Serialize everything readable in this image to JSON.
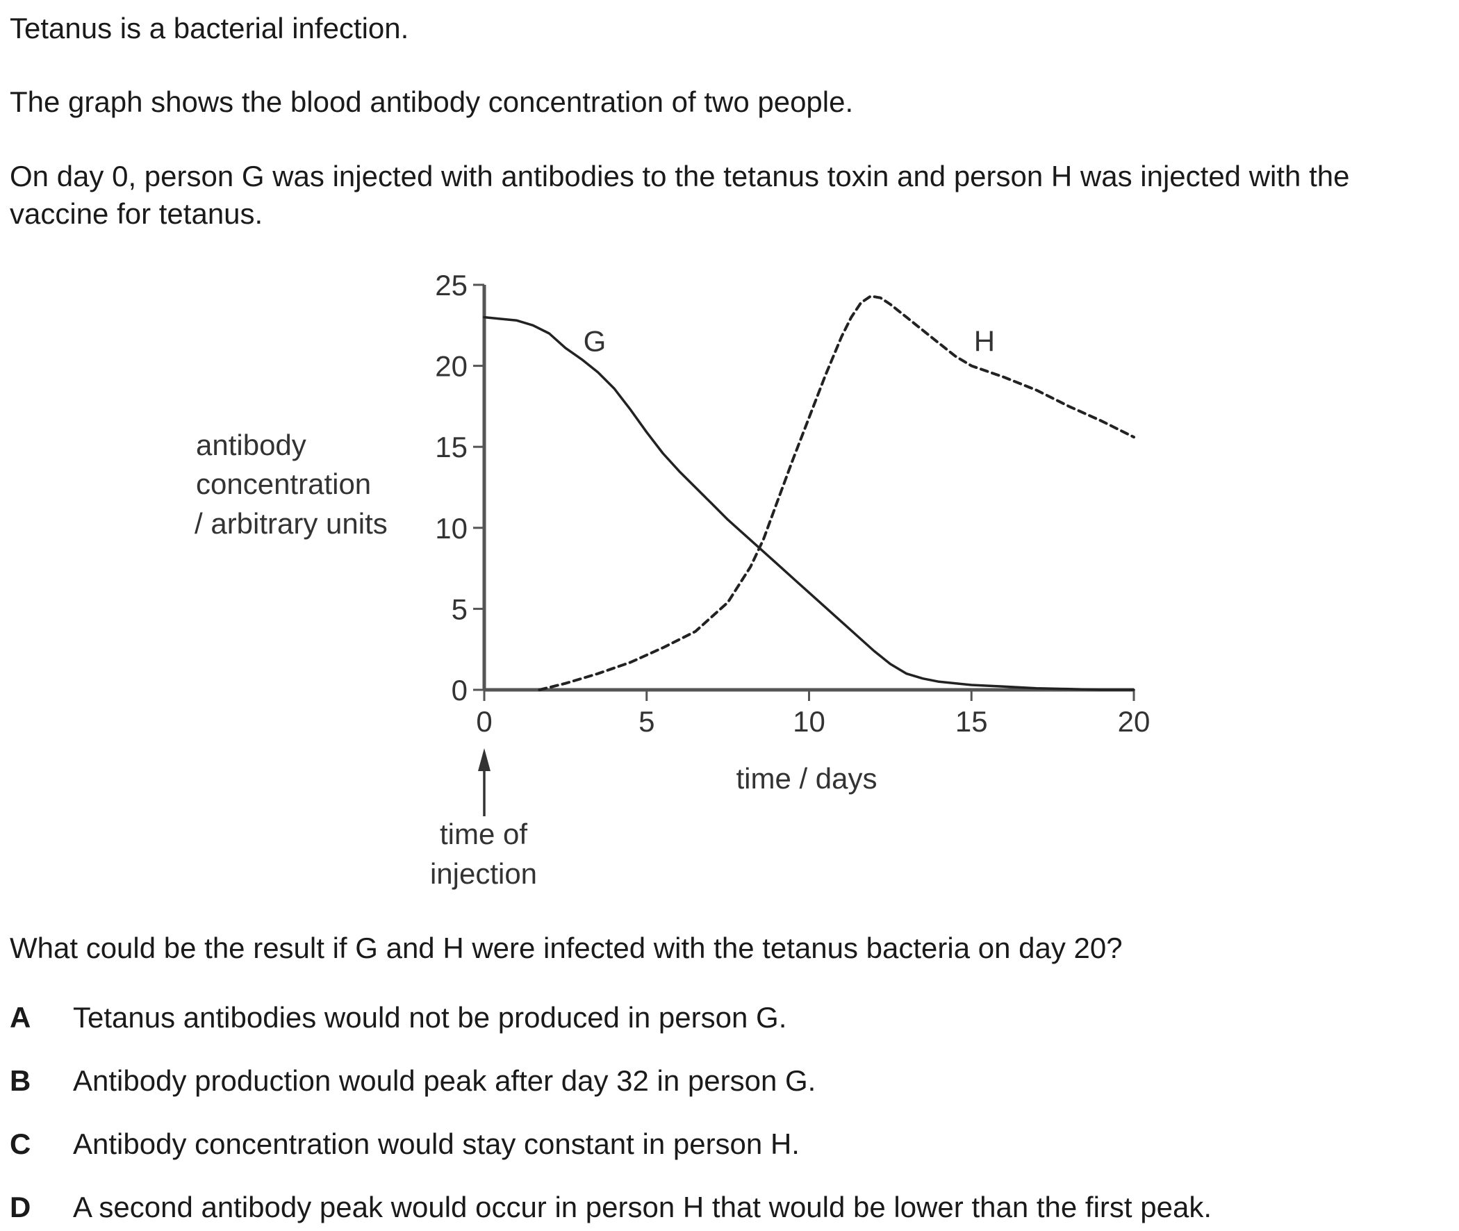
{
  "intro": [
    "Tetanus is a bacterial infection.",
    "The graph shows the blood antibody concentration of two people.",
    "On day 0, person G was injected with antibodies to the tetanus toxin and person H was injected with the vaccine for tetanus."
  ],
  "chart_data": {
    "type": "line",
    "title": "",
    "xlabel": "time / days",
    "ylabel": [
      "antibody",
      "concentration",
      "/ arbitrary units"
    ],
    "xlim": [
      0,
      20
    ],
    "ylim": [
      0,
      25
    ],
    "x_ticks": [
      0,
      5,
      10,
      15,
      20
    ],
    "y_ticks": [
      0,
      5,
      10,
      15,
      20,
      25
    ],
    "grid": false,
    "series": [
      {
        "name": "G",
        "style": "solid",
        "x": [
          0,
          0.5,
          1,
          1.5,
          2,
          2.5,
          3,
          3.5,
          4,
          4.5,
          5,
          5.5,
          6,
          6.5,
          7,
          7.5,
          8,
          8.5,
          9,
          9.5,
          10,
          10.5,
          11,
          11.5,
          12,
          12.5,
          13,
          13.5,
          14,
          15,
          16,
          17,
          18,
          19,
          20
        ],
        "y": [
          23,
          22.9,
          22.8,
          22.5,
          22,
          21.1,
          20.4,
          19.6,
          18.6,
          17.3,
          15.9,
          14.6,
          13.5,
          12.5,
          11.5,
          10.5,
          9.6,
          8.7,
          7.8,
          6.9,
          6,
          5.1,
          4.2,
          3.3,
          2.4,
          1.6,
          1,
          0.7,
          0.5,
          0.3,
          0.2,
          0.1,
          0.05,
          0,
          0
        ]
      },
      {
        "name": "H",
        "style": "dashed",
        "x": [
          1.7,
          2.5,
          3.5,
          4.5,
          5.5,
          6.5,
          7.5,
          8.2,
          8.6,
          9,
          9.5,
          10,
          10.5,
          11,
          11.3,
          11.6,
          11.9,
          12.2,
          12.5,
          13,
          13.5,
          14,
          14.5,
          15,
          16,
          17,
          18,
          19,
          20
        ],
        "y": [
          0,
          0.4,
          1.0,
          1.7,
          2.6,
          3.6,
          5.4,
          7.6,
          9.3,
          11.5,
          14.2,
          16.8,
          19.4,
          21.8,
          23.0,
          23.9,
          24.3,
          24.2,
          23.8,
          23.0,
          22.2,
          21.4,
          20.6,
          20.0,
          19.3,
          18.5,
          17.5,
          16.6,
          15.6
        ]
      }
    ],
    "annotation": {
      "label": [
        "time of",
        "injection"
      ],
      "x": 0
    }
  },
  "question": "What could be the result if G and H were infected with the tetanus bacteria on day 20?",
  "options": [
    {
      "letter": "A",
      "text": "Tetanus antibodies would not be produced in person G."
    },
    {
      "letter": "B",
      "text": "Antibody production would peak after day 32 in person G."
    },
    {
      "letter": "C",
      "text": "Antibody concentration would stay constant in person H."
    },
    {
      "letter": "D",
      "text": "A second antibody peak would occur in person H that would be lower than the first peak."
    }
  ]
}
